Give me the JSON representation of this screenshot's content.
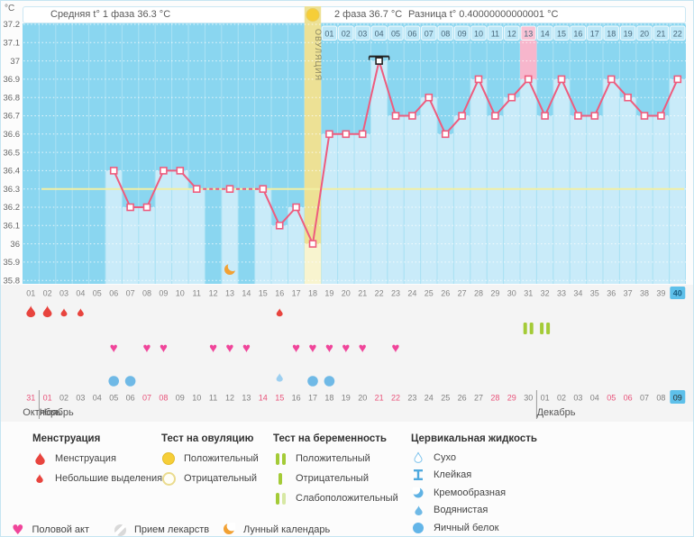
{
  "header": {
    "unit": "°C",
    "avg_phase1": "Средняя t° 1 фаза 36.3 °C",
    "avg_phase2": "2 фаза 36.7 °C",
    "difference": "Разница t° 0.40000000000001 °C"
  },
  "chart_data": {
    "type": "line",
    "title": "Basal body temperature cycle chart",
    "ylabel": "°C",
    "ylim": [
      35.8,
      37.2
    ],
    "ytick_step": 0.1,
    "y_tick_labels": [
      "37.2",
      "37.1",
      "37",
      "36.9",
      "36.8",
      "36.7",
      "36.6",
      "36.5",
      "36.4",
      "36.3",
      "36.2",
      "36.1",
      "36",
      "35.9",
      "35.8"
    ],
    "day_labels": [
      "01",
      "02",
      "03",
      "04",
      "05",
      "06",
      "07",
      "08",
      "09",
      "10",
      "11",
      "12",
      "13",
      "14",
      "15",
      "16",
      "17",
      "18",
      "19",
      "20",
      "21",
      "22",
      "23",
      "24",
      "25",
      "26",
      "27",
      "28",
      "29",
      "30",
      "31",
      "32",
      "33",
      "34",
      "35",
      "36",
      "37",
      "38",
      "39",
      "40"
    ],
    "temps": [
      null,
      null,
      null,
      null,
      null,
      36.4,
      36.2,
      36.2,
      36.4,
      36.4,
      36.3,
      null,
      36.3,
      null,
      36.3,
      36.1,
      36.2,
      36.0,
      36.6,
      36.6,
      36.6,
      37.0,
      36.7,
      36.7,
      36.8,
      36.6,
      36.7,
      36.9,
      36.7,
      36.8,
      36.9,
      36.7,
      36.9,
      36.7,
      36.7,
      36.9,
      36.8,
      36.7,
      36.7,
      36.9
    ],
    "coverline": 36.3,
    "ovulation_day": 18,
    "ovulation_label": "ОВУЛЯЦИЯ",
    "selected_day": 22,
    "pink_highlight_day": 31,
    "today_day": 40,
    "moon_day": 13,
    "post_ovulation_labels": [
      "01",
      "02",
      "03",
      "04",
      "05",
      "06",
      "07",
      "08",
      "09",
      "10",
      "11",
      "12",
      "13",
      "14",
      "15",
      "16",
      "17",
      "18",
      "19",
      "20",
      "21",
      "22"
    ],
    "post_ovulation_highlight": "13",
    "colors": {
      "plot_bg": "#8AD6F0",
      "column": "#C9EBF9",
      "line": "#EE5C7E",
      "coverline": "#F2EFA3",
      "ovulation_band": "#EDE195",
      "ovulation_band_light": "#F8F4CF",
      "pink_highlight": "#F7B6CC",
      "cell_bg": "#BDE7F7",
      "cell_pink": "#F8C3D5",
      "today_bg": "#5EC0EA",
      "menstruation": "#E8443E",
      "heart": "#F0459A",
      "pregnancy_test": "#A4CB37",
      "cervical": "#6FB9E6",
      "cervical_light": "#9DCFF0",
      "moon": "#F2A133",
      "weekend": "#E8537A",
      "strip_bg": "#F4F4F4"
    }
  },
  "rows": {
    "menstruation": [
      {
        "day": 1,
        "size": "large"
      },
      {
        "day": 2,
        "size": "large"
      },
      {
        "day": 3,
        "size": "small"
      },
      {
        "day": 4,
        "size": "small"
      },
      {
        "day": 16,
        "size": "small"
      }
    ],
    "pregnancy_tests": [
      {
        "day": 31,
        "result": "positive"
      },
      {
        "day": 32,
        "result": "positive"
      }
    ],
    "intercourse_days": [
      6,
      8,
      9,
      12,
      13,
      14,
      17,
      18,
      19,
      20,
      21,
      23
    ],
    "cervical": [
      {
        "day": 6,
        "type": "egg_white"
      },
      {
        "day": 7,
        "type": "egg_white"
      },
      {
        "day": 16,
        "type": "watery"
      },
      {
        "day": 18,
        "type": "egg_white"
      },
      {
        "day": 19,
        "type": "egg_white"
      }
    ],
    "dates": [
      {
        "label": "31",
        "red": true
      },
      {
        "label": "01",
        "red": true
      },
      {
        "label": "02"
      },
      {
        "label": "03"
      },
      {
        "label": "04"
      },
      {
        "label": "05"
      },
      {
        "label": "06"
      },
      {
        "label": "07",
        "red": true
      },
      {
        "label": "08",
        "red": true
      },
      {
        "label": "09"
      },
      {
        "label": "10"
      },
      {
        "label": "11"
      },
      {
        "label": "12"
      },
      {
        "label": "13"
      },
      {
        "label": "14",
        "red": true
      },
      {
        "label": "15",
        "red": true
      },
      {
        "label": "16"
      },
      {
        "label": "17"
      },
      {
        "label": "18"
      },
      {
        "label": "19"
      },
      {
        "label": "20"
      },
      {
        "label": "21",
        "red": true
      },
      {
        "label": "22",
        "red": true
      },
      {
        "label": "23"
      },
      {
        "label": "24"
      },
      {
        "label": "25"
      },
      {
        "label": "26"
      },
      {
        "label": "27"
      },
      {
        "label": "28",
        "red": true
      },
      {
        "label": "29",
        "red": true
      },
      {
        "label": "30"
      },
      {
        "label": "01"
      },
      {
        "label": "02"
      },
      {
        "label": "03"
      },
      {
        "label": "04"
      },
      {
        "label": "05",
        "red": true
      },
      {
        "label": "06",
        "red": true
      },
      {
        "label": "07"
      },
      {
        "label": "08"
      },
      {
        "label": "09",
        "today": true
      }
    ],
    "month_dividers_after_day": [
      1,
      31
    ],
    "months": [
      {
        "label": "Октябрь",
        "anchor_day": 1
      },
      {
        "label": "Ноябрь",
        "anchor_day": 2
      },
      {
        "label": "Декабрь",
        "anchor_day": 32
      }
    ]
  },
  "legend": {
    "columns": [
      {
        "title": "Менструация",
        "items": [
          {
            "label": "Менструация"
          },
          {
            "label": "Небольшие выделения"
          }
        ]
      },
      {
        "title": "Тест на овуляцию",
        "items": [
          {
            "label": "Положительный"
          },
          {
            "label": "Отрицательный"
          }
        ]
      },
      {
        "title": "Тест на беременность",
        "items": [
          {
            "label": "Положительный"
          },
          {
            "label": "Отрицательный"
          },
          {
            "label": "Слабоположительный"
          }
        ]
      },
      {
        "title": "Цервикальная жидкость",
        "items": [
          {
            "label": "Сухо"
          },
          {
            "label": "Клейкая"
          },
          {
            "label": "Кремообразная"
          },
          {
            "label": "Водянистая"
          },
          {
            "label": "Яичный белок"
          }
        ]
      }
    ],
    "bottom": [
      {
        "label": "Половой акт"
      },
      {
        "label": "Прием лекарств"
      },
      {
        "label": "Лунный календарь"
      }
    ]
  }
}
